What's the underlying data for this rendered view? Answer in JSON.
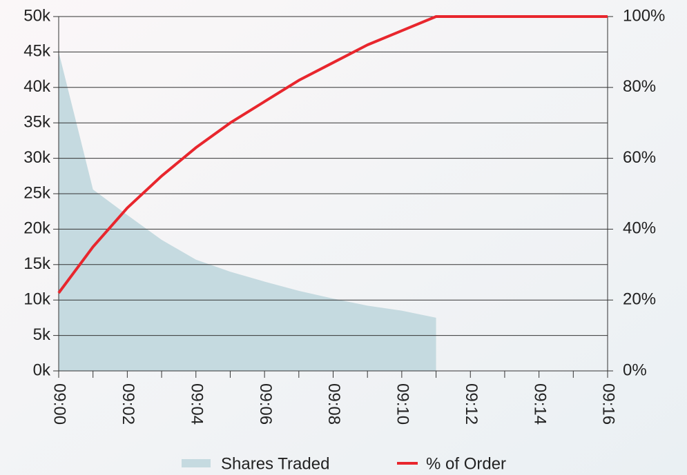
{
  "chart_data": {
    "type": "area_line",
    "categories": [
      "09:00",
      null,
      "09:02",
      null,
      "09:04",
      null,
      "09:06",
      null,
      "09:08",
      null,
      "09:10",
      null,
      "09:12",
      null,
      "09:14",
      null,
      "09:16"
    ],
    "series": [
      {
        "name": "Shares Traded",
        "type": "area",
        "color": "#c5dae0",
        "values": [
          45000,
          25600,
          22000,
          18500,
          15700,
          14000,
          12600,
          11300,
          10200,
          9200,
          8500,
          7500,
          null,
          null,
          null,
          null,
          null
        ]
      },
      {
        "name": "% of Order",
        "type": "line",
        "color": "#e8262d",
        "axis": "y2",
        "values": [
          22,
          35,
          46,
          55,
          63,
          70,
          76,
          82,
          87,
          92,
          96,
          100,
          100,
          100,
          100,
          100,
          100
        ]
      }
    ],
    "ylim": [
      0,
      50000
    ],
    "yticks": [
      {
        "value": 0,
        "label": "0k"
      },
      {
        "value": 5000,
        "label": "5k"
      },
      {
        "value": 10000,
        "label": "10k"
      },
      {
        "value": 15000,
        "label": "15k"
      },
      {
        "value": 20000,
        "label": "20k"
      },
      {
        "value": 25000,
        "label": "25k"
      },
      {
        "value": 30000,
        "label": "30k"
      },
      {
        "value": 35000,
        "label": "35k"
      },
      {
        "value": 40000,
        "label": "40k"
      },
      {
        "value": 45000,
        "label": "45k"
      },
      {
        "value": 50000,
        "label": "50k"
      }
    ],
    "y2lim": [
      0,
      100
    ],
    "y2ticks": [
      {
        "value": 0,
        "label": "0%"
      },
      {
        "value": 20,
        "label": "20%"
      },
      {
        "value": 40,
        "label": "40%"
      },
      {
        "value": 60,
        "label": "60%"
      },
      {
        "value": 80,
        "label": "80%"
      },
      {
        "value": 100,
        "label": "100%"
      }
    ],
    "grid": true,
    "legend": "bottom"
  }
}
